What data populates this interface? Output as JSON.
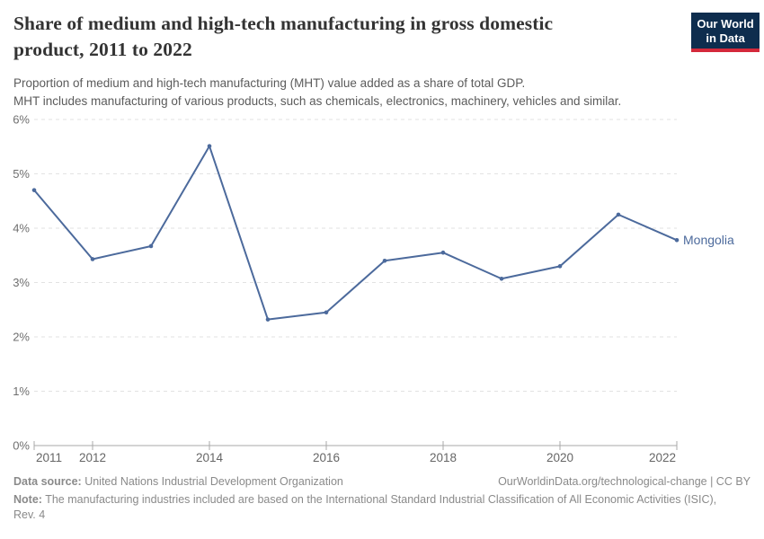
{
  "header": {
    "title": "Share of medium and high-tech manufacturing in gross domestic product, 2011 to 2022",
    "subtitle_line1": "Proportion of medium and high-tech manufacturing (MHT) value added as a share of total GDP.",
    "subtitle_line2": "MHT includes manufacturing of various products, such as chemicals, electronics, machinery, vehicles and similar.",
    "logo": {
      "line1": "Our World",
      "line2": "in Data",
      "bg_color": "#0e2d4e",
      "accent_color": "#d4293b"
    }
  },
  "chart_data": {
    "type": "line",
    "title": "Share of medium and high-tech manufacturing in gross domestic product, 2011 to 2022",
    "xlabel": "",
    "ylabel": "",
    "xlim": [
      2011,
      2022
    ],
    "ylim": [
      0,
      6
    ],
    "grid": "horizontal-dashed",
    "grid_color": "#e2e2e2",
    "axis_color": "#a8a8a8",
    "legend_position": "end-of-line",
    "x_ticks": [
      2011,
      2012,
      2014,
      2016,
      2018,
      2020,
      2022
    ],
    "y_ticks": [
      {
        "value": 0,
        "label": "0%"
      },
      {
        "value": 1,
        "label": "1%"
      },
      {
        "value": 2,
        "label": "2%"
      },
      {
        "value": 3,
        "label": "3%"
      },
      {
        "value": 4,
        "label": "4%"
      },
      {
        "value": 5,
        "label": "5%"
      },
      {
        "value": 6,
        "label": "6%"
      }
    ],
    "series": [
      {
        "name": "Mongolia",
        "color": "#4C6A9C",
        "x": [
          2011,
          2012,
          2013,
          2014,
          2015,
          2016,
          2017,
          2018,
          2019,
          2020,
          2021,
          2022
        ],
        "values": [
          4.7,
          3.43,
          3.67,
          5.51,
          2.32,
          2.45,
          3.4,
          3.55,
          3.07,
          3.3,
          4.25,
          3.78
        ]
      }
    ]
  },
  "footer": {
    "source_label": "Data source:",
    "source_text": " United Nations Industrial Development Organization",
    "link_text": "OurWorldinData.org/technological-change | CC BY",
    "note_label": "Note:",
    "note_text": " The manufacturing industries included are based on the International Standard Industrial Classification of All Economic Activities (ISIC), Rev. 4"
  }
}
